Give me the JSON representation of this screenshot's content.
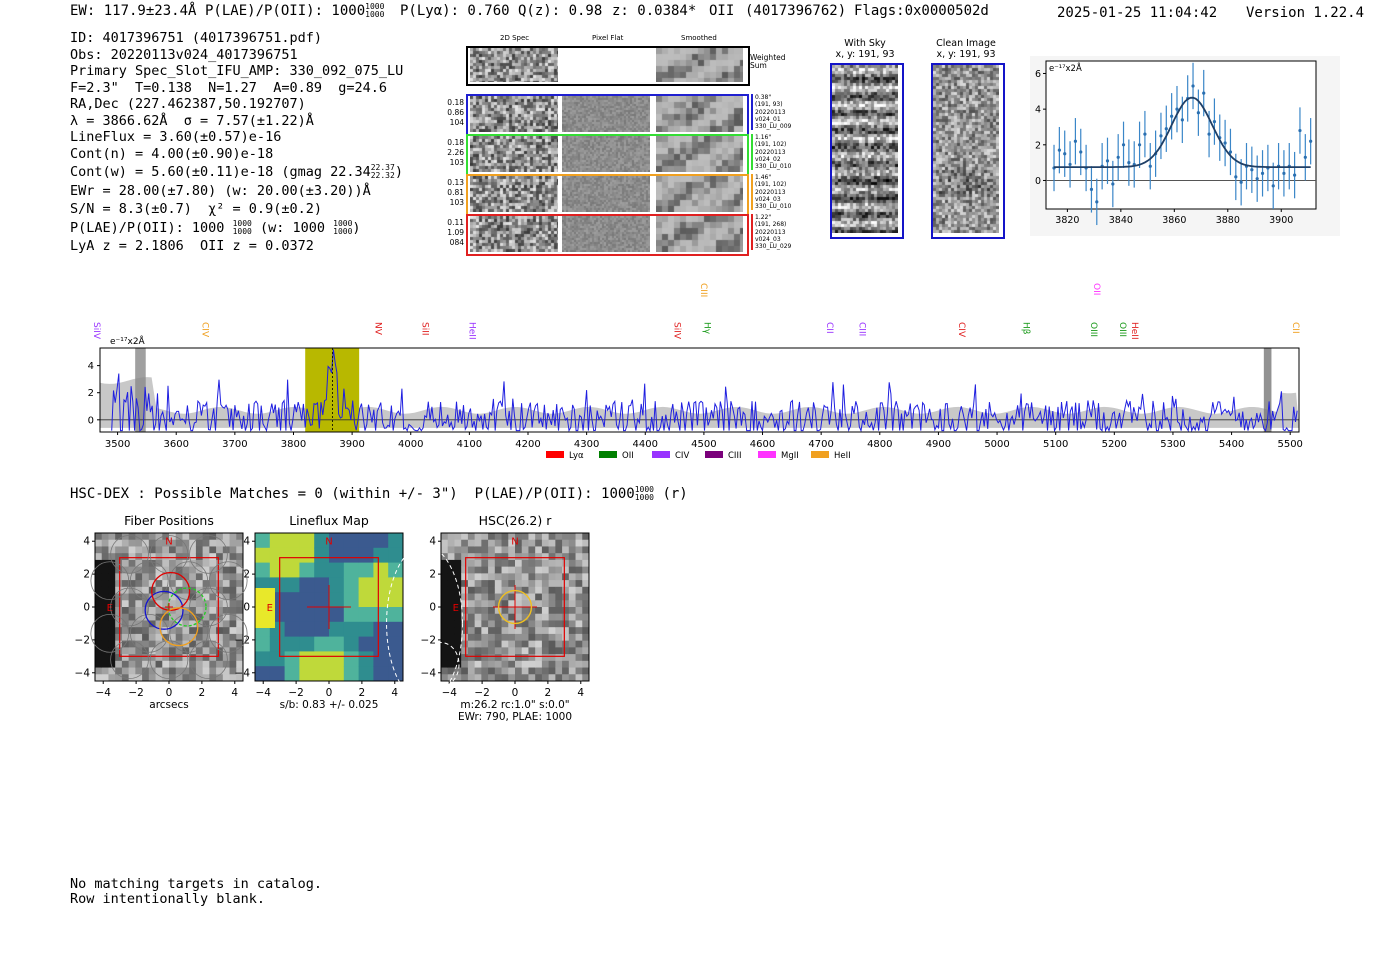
{
  "header": {
    "ew": "EW: 117.9±23.4Å",
    "plae_label": "P(LAE)/P(OII): 1000",
    "plae_hi": "1000",
    "plae_lo": "1000",
    "plya": "P(Lyα): 0.760",
    "qz": "Q(z): 0.98",
    "z": "z: 0.0384*",
    "line": "OII",
    "id_paren": "(4017396762)",
    "flags": "Flags:0x0000502d",
    "datetime": "2025-01-25 11:04:42",
    "version": "Version 1.22.4"
  },
  "info": {
    "id": "ID: 4017396751 (4017396751.pdf)",
    "obs": "Obs: 20220113v024_4017396751",
    "primary": "Primary Spec_Slot_IFU_AMP: 330_092_075_LU",
    "params": "F=2.3\"  T=0.138  N=1.27  A=0.89  g=24.6",
    "radec": "RA,Dec (227.462387,50.192707)",
    "lambda": "λ = 3866.62Å  σ = 7.57(±1.22)Å",
    "lineflux": "LineFlux = 3.60(±0.57)e-16",
    "contn": "Cont(n) = 4.00(±0.90)e-18",
    "contw": "Cont(w) = 5.60(±0.11)e-18 (gmag 22.34",
    "gmag_hi": "22.37",
    "gmag_lo": "22.32",
    "contw_end": ")",
    "ewr": "EWr = 28.00(±7.80) (w: 20.00(±3.20))Å",
    "sn": "S/N = 8.3(±0.7)  χ² = 0.9(±0.2)",
    "plae": "P(LAE)/P(OII): 1000",
    "plae_hi": "1000",
    "plae_lo": "1000",
    "plae_w": "(w: 1000",
    "plae_w_hi": "1000",
    "plae_w_lo": "1000",
    "plae_w_end": ")",
    "lya": "LyA z = 2.1806  OII z = 0.0372"
  },
  "cutouts": {
    "col_headers": [
      "2D Spec",
      "Pixel Flat",
      "Smoothed"
    ],
    "weighted_sum": "Weighted Sum",
    "rows": [
      {
        "color": "#1f1fd0",
        "left": [
          "0.18",
          "0.86",
          "104"
        ],
        "right": [
          "0.38\"",
          "(191, 93)",
          "20220113",
          "v024_01",
          "330_LU_009"
        ]
      },
      {
        "color": "#33dd33",
        "left": [
          "0.18",
          "2.26",
          "103"
        ],
        "right": [
          "1.16\"",
          "(191, 102)",
          "20220113",
          "v024_02",
          "330_LU_010"
        ]
      },
      {
        "color": "#f0a020",
        "left": [
          "0.13",
          "0.81",
          "103"
        ],
        "right": [
          "1.46\"",
          "(191, 102)",
          "20220113",
          "v024_03",
          "330_LU_010"
        ]
      },
      {
        "color": "#e02020",
        "left": [
          "0.11",
          "1.09",
          "084"
        ],
        "right": [
          "1.22\"",
          "(191, 268)",
          "20220113",
          "v024_03",
          "330_LU_029"
        ]
      }
    ]
  },
  "sky": {
    "with_sky_title": "With Sky",
    "with_sky_coords": "x, y: 191, 93",
    "clean_title": "Clean Image",
    "clean_coords": "x, y: 191, 93"
  },
  "chart_data": [
    {
      "type": "scatter",
      "name": "line-fit",
      "title": "",
      "ylabel": "e⁻¹⁷x2Å",
      "xlim": [
        3812,
        3913
      ],
      "ylim": [
        -1.6,
        6.7
      ],
      "xticks": [
        "3820",
        "3840",
        "3860",
        "3880",
        "3900"
      ],
      "yticks": [
        "0",
        "2",
        "4",
        "6"
      ],
      "gauss": {
        "center": 3866.6,
        "sigma": 7.57,
        "amp": 3.9,
        "base": 0.75
      },
      "x": [
        3815,
        3817,
        3819,
        3821,
        3823,
        3825,
        3827,
        3829,
        3831,
        3833,
        3835,
        3837,
        3839,
        3841,
        3843,
        3845,
        3847,
        3849,
        3851,
        3853,
        3855,
        3857,
        3859,
        3861,
        3863,
        3865,
        3867,
        3869,
        3871,
        3873,
        3875,
        3877,
        3879,
        3881,
        3883,
        3885,
        3887,
        3889,
        3891,
        3893,
        3895,
        3897,
        3899,
        3901,
        3903,
        3905,
        3907,
        3909,
        3911
      ],
      "y": [
        0.7,
        1.7,
        1.5,
        0.9,
        2.2,
        1.6,
        0.7,
        -0.5,
        -1.2,
        0.8,
        1.1,
        -0.2,
        1.3,
        2.0,
        1.0,
        0.9,
        2.0,
        2.6,
        0.8,
        1.5,
        2.5,
        2.9,
        3.6,
        4.0,
        3.4,
        4.6,
        5.3,
        3.8,
        4.9,
        2.6,
        3.3,
        2.4,
        2.1,
        1.6,
        0.2,
        -0.1,
        0.8,
        0.6,
        0.1,
        0.4,
        0.7,
        -0.3,
        0.8,
        0.4,
        0.8,
        0.3,
        2.8,
        1.3,
        2.2
      ],
      "err": 1.3
    },
    {
      "type": "line",
      "name": "full-spectrum",
      "ylabel": "e⁻¹⁷x2Å",
      "xlim": [
        3470,
        5515
      ],
      "ylim": [
        -0.9,
        5.3
      ],
      "xticks": [
        "3500",
        "3600",
        "3700",
        "3800",
        "3900",
        "4000",
        "4100",
        "4200",
        "4300",
        "4400",
        "4500",
        "4600",
        "4700",
        "4800",
        "4900",
        "5000",
        "5100",
        "5200",
        "5300",
        "5400",
        "5500"
      ],
      "yticks": [
        "0",
        "2",
        "4"
      ],
      "highlight_range": [
        3820,
        3912
      ],
      "peak_wavelength": 3866.6,
      "series_color": "#1f1fe0",
      "lines": [
        {
          "name": "SiIV",
          "wave": 3455,
          "color": "#9933ff",
          "row": 0
        },
        {
          "name": "CIV",
          "wave": 3640,
          "color": "#f0a020",
          "row": 0
        },
        {
          "name": "CIII",
          "wave": 4490,
          "color": "#f0a020",
          "row": 1
        },
        {
          "name": "NV",
          "wave": 3935,
          "color": "#e02020",
          "row": 0
        },
        {
          "name": "SiII",
          "wave": 4015,
          "color": "#e02020",
          "row": 0
        },
        {
          "name": "HeII",
          "wave": 4095,
          "color": "#9933ff",
          "row": 0
        },
        {
          "name": "SiIV",
          "wave": 4445,
          "color": "#e02020",
          "row": 0
        },
        {
          "name": "Hγ",
          "wave": 4496,
          "color": "#1a9a1a",
          "row": 0
        },
        {
          "name": "CII",
          "wave": 4705,
          "color": "#9933ff",
          "row": 0
        },
        {
          "name": "CIII",
          "wave": 4760,
          "color": "#9933ff",
          "row": 0
        },
        {
          "name": "CIV",
          "wave": 4930,
          "color": "#e02020",
          "row": 0
        },
        {
          "name": "Hβ",
          "wave": 5040,
          "color": "#1a9a1a",
          "row": 0
        },
        {
          "name": "OIII",
          "wave": 5155,
          "color": "#1a9a1a",
          "row": 0
        },
        {
          "name": "OIII",
          "wave": 5205,
          "color": "#1a9a1a",
          "row": 0
        },
        {
          "name": "HeII",
          "wave": 5225,
          "color": "#e02020",
          "row": 0
        },
        {
          "name": "OII",
          "wave": 5160,
          "color": "#ff33ff",
          "row": 1
        },
        {
          "name": "CII",
          "wave": 5500,
          "color": "#f0a020",
          "row": 0
        }
      ],
      "legend": [
        {
          "label": "Lyα",
          "color": "#ff0000"
        },
        {
          "label": "OII",
          "color": "#008000"
        },
        {
          "label": "CIV",
          "color": "#9933ff"
        },
        {
          "label": "CIII",
          "color": "#7a007a"
        },
        {
          "label": "MgII",
          "color": "#ff33ff"
        },
        {
          "label": "HeII",
          "color": "#f0a020"
        }
      ]
    }
  ],
  "hsc": {
    "headline": "HSC-DEX : Possible Matches = 0 (within +/- 3\")  P(LAE)/P(OII): 1000",
    "frac_hi": "1000",
    "frac_lo": "1000",
    "suffix": "(r)",
    "panels": [
      {
        "title": "Fiber Positions",
        "caption": "arcsecs"
      },
      {
        "title": "Lineflux Map",
        "caption": "s/b: 0.83 +/- 0.025"
      },
      {
        "title": "HSC(26.2) r",
        "caption": "m:26.2 rc:1.0\"  s:0.0\"",
        "caption2": "EWr: 790, PLAE: 1000"
      }
    ],
    "ticks": [
      "4",
      "2",
      "0",
      "−2",
      "−4"
    ],
    "xticks": [
      "−4",
      "−2",
      "0",
      "2",
      "4"
    ],
    "north": "N",
    "east": "E"
  },
  "footer": {
    "line1": "No matching targets in catalog.",
    "line2": "Row intentionally blank."
  }
}
